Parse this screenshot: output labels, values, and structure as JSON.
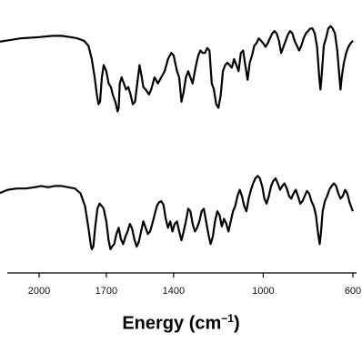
{
  "chart_data": {
    "type": "line",
    "title": "",
    "xlabel_main": "Energy (cm",
    "xlabel_sup": "−1",
    "xlabel_close": ")",
    "x_reversed": true,
    "xlim": [
      2200,
      600
    ],
    "x_ticks": [
      2000,
      1700,
      1400,
      1000,
      600
    ],
    "x_tick_labels": [
      "2000",
      "1700",
      "1400",
      "1000",
      "600"
    ],
    "y_axis_visible": false,
    "grid": false,
    "series": [
      {
        "points": [
          [
            2220,
            0.78
          ],
          [
            2150,
            0.8
          ],
          [
            2080,
            0.82
          ],
          [
            2000,
            0.83
          ],
          [
            1940,
            0.84
          ],
          [
            1900,
            0.84
          ],
          [
            1860,
            0.83
          ],
          [
            1830,
            0.82
          ],
          [
            1800,
            0.8
          ],
          [
            1780,
            0.76
          ],
          [
            1765,
            0.65
          ],
          [
            1752,
            0.5
          ],
          [
            1742,
            0.35
          ],
          [
            1735,
            0.28
          ],
          [
            1728,
            0.3
          ],
          [
            1720,
            0.5
          ],
          [
            1712,
            0.6
          ],
          [
            1700,
            0.55
          ],
          [
            1690,
            0.45
          ],
          [
            1680,
            0.42
          ],
          [
            1670,
            0.35
          ],
          [
            1660,
            0.3
          ],
          [
            1650,
            0.22
          ],
          [
            1645,
            0.25
          ],
          [
            1640,
            0.45
          ],
          [
            1632,
            0.5
          ],
          [
            1622,
            0.45
          ],
          [
            1612,
            0.4
          ],
          [
            1602,
            0.42
          ],
          [
            1592,
            0.36
          ],
          [
            1582,
            0.28
          ],
          [
            1572,
            0.3
          ],
          [
            1562,
            0.45
          ],
          [
            1552,
            0.6
          ],
          [
            1542,
            0.5
          ],
          [
            1535,
            0.42
          ],
          [
            1525,
            0.4
          ],
          [
            1510,
            0.36
          ],
          [
            1500,
            0.4
          ],
          [
            1485,
            0.5
          ],
          [
            1470,
            0.45
          ],
          [
            1455,
            0.5
          ],
          [
            1440,
            0.55
          ],
          [
            1425,
            0.65
          ],
          [
            1410,
            0.7
          ],
          [
            1400,
            0.68
          ],
          [
            1385,
            0.55
          ],
          [
            1375,
            0.5
          ],
          [
            1365,
            0.3
          ],
          [
            1355,
            0.38
          ],
          [
            1345,
            0.5
          ],
          [
            1335,
            0.55
          ],
          [
            1325,
            0.5
          ],
          [
            1315,
            0.45
          ],
          [
            1300,
            0.6
          ],
          [
            1290,
            0.68
          ],
          [
            1280,
            0.72
          ],
          [
            1270,
            0.7
          ],
          [
            1260,
            0.7
          ],
          [
            1250,
            0.74
          ],
          [
            1240,
            0.72
          ],
          [
            1230,
            0.45
          ],
          [
            1220,
            0.4
          ],
          [
            1210,
            0.28
          ],
          [
            1200,
            0.25
          ],
          [
            1190,
            0.35
          ],
          [
            1180,
            0.55
          ],
          [
            1170,
            0.6
          ],
          [
            1160,
            0.62
          ],
          [
            1150,
            0.6
          ],
          [
            1140,
            0.58
          ],
          [
            1130,
            0.65
          ],
          [
            1120,
            0.6
          ],
          [
            1110,
            0.55
          ],
          [
            1100,
            0.7
          ],
          [
            1090,
            0.72
          ],
          [
            1080,
            0.6
          ],
          [
            1070,
            0.48
          ],
          [
            1060,
            0.62
          ],
          [
            1050,
            0.68
          ],
          [
            1040,
            0.76
          ],
          [
            1030,
            0.78
          ],
          [
            1020,
            0.82
          ],
          [
            1010,
            0.8
          ],
          [
            1000,
            0.78
          ],
          [
            990,
            0.75
          ],
          [
            980,
            0.78
          ],
          [
            970,
            0.82
          ],
          [
            960,
            0.86
          ],
          [
            950,
            0.88
          ],
          [
            940,
            0.86
          ],
          [
            930,
            0.8
          ],
          [
            920,
            0.7
          ],
          [
            910,
            0.75
          ],
          [
            900,
            0.8
          ],
          [
            890,
            0.85
          ],
          [
            880,
            0.88
          ],
          [
            870,
            0.86
          ],
          [
            860,
            0.8
          ],
          [
            850,
            0.76
          ],
          [
            840,
            0.72
          ],
          [
            830,
            0.76
          ],
          [
            820,
            0.82
          ],
          [
            810,
            0.86
          ],
          [
            800,
            0.88
          ],
          [
            790,
            0.9
          ],
          [
            780,
            0.9
          ],
          [
            770,
            0.86
          ],
          [
            760,
            0.75
          ],
          [
            750,
            0.5
          ],
          [
            745,
            0.4
          ],
          [
            740,
            0.5
          ],
          [
            730,
            0.76
          ],
          [
            720,
            0.82
          ],
          [
            710,
            0.9
          ],
          [
            700,
            0.92
          ],
          [
            690,
            0.9
          ],
          [
            680,
            0.86
          ],
          [
            670,
            0.72
          ],
          [
            660,
            0.5
          ],
          [
            655,
            0.4
          ],
          [
            650,
            0.5
          ],
          [
            640,
            0.62
          ],
          [
            630,
            0.7
          ],
          [
            620,
            0.75
          ],
          [
            610,
            0.78
          ],
          [
            600,
            0.8
          ]
        ]
      },
      {
        "points": [
          [
            2220,
            0.5
          ],
          [
            2180,
            0.52
          ],
          [
            2140,
            0.55
          ],
          [
            2100,
            0.56
          ],
          [
            2060,
            0.56
          ],
          [
            2020,
            0.57
          ],
          [
            1990,
            0.58
          ],
          [
            1960,
            0.57
          ],
          [
            1930,
            0.58
          ],
          [
            1900,
            0.58
          ],
          [
            1870,
            0.57
          ],
          [
            1840,
            0.56
          ],
          [
            1815,
            0.52
          ],
          [
            1795,
            0.42
          ],
          [
            1780,
            0.25
          ],
          [
            1770,
            0.12
          ],
          [
            1765,
            0.08
          ],
          [
            1758,
            0.1
          ],
          [
            1750,
            0.25
          ],
          [
            1740,
            0.4
          ],
          [
            1730,
            0.44
          ],
          [
            1720,
            0.42
          ],
          [
            1712,
            0.4
          ],
          [
            1700,
            0.3
          ],
          [
            1690,
            0.15
          ],
          [
            1682,
            0.08
          ],
          [
            1675,
            0.1
          ],
          [
            1665,
            0.12
          ],
          [
            1655,
            0.2
          ],
          [
            1645,
            0.25
          ],
          [
            1635,
            0.16
          ],
          [
            1625,
            0.12
          ],
          [
            1615,
            0.18
          ],
          [
            1605,
            0.22
          ],
          [
            1595,
            0.28
          ],
          [
            1585,
            0.24
          ],
          [
            1575,
            0.16
          ],
          [
            1565,
            0.1
          ],
          [
            1555,
            0.14
          ],
          [
            1545,
            0.22
          ],
          [
            1535,
            0.3
          ],
          [
            1525,
            0.25
          ],
          [
            1515,
            0.2
          ],
          [
            1505,
            0.22
          ],
          [
            1495,
            0.28
          ],
          [
            1485,
            0.35
          ],
          [
            1475,
            0.42
          ],
          [
            1465,
            0.45
          ],
          [
            1455,
            0.46
          ],
          [
            1445,
            0.43
          ],
          [
            1435,
            0.32
          ],
          [
            1425,
            0.25
          ],
          [
            1415,
            0.3
          ],
          [
            1405,
            0.22
          ],
          [
            1395,
            0.28
          ],
          [
            1385,
            0.3
          ],
          [
            1375,
            0.22
          ],
          [
            1365,
            0.15
          ],
          [
            1355,
            0.22
          ],
          [
            1345,
            0.3
          ],
          [
            1335,
            0.4
          ],
          [
            1325,
            0.38
          ],
          [
            1315,
            0.28
          ],
          [
            1305,
            0.22
          ],
          [
            1295,
            0.25
          ],
          [
            1285,
            0.3
          ],
          [
            1275,
            0.38
          ],
          [
            1265,
            0.4
          ],
          [
            1255,
            0.3
          ],
          [
            1245,
            0.2
          ],
          [
            1235,
            0.12
          ],
          [
            1225,
            0.18
          ],
          [
            1215,
            0.3
          ],
          [
            1205,
            0.38
          ],
          [
            1195,
            0.35
          ],
          [
            1185,
            0.26
          ],
          [
            1175,
            0.32
          ],
          [
            1165,
            0.28
          ],
          [
            1155,
            0.22
          ],
          [
            1145,
            0.3
          ],
          [
            1135,
            0.38
          ],
          [
            1125,
            0.42
          ],
          [
            1115,
            0.5
          ],
          [
            1105,
            0.55
          ],
          [
            1095,
            0.5
          ],
          [
            1085,
            0.42
          ],
          [
            1075,
            0.38
          ],
          [
            1065,
            0.48
          ],
          [
            1055,
            0.55
          ],
          [
            1045,
            0.6
          ],
          [
            1035,
            0.64
          ],
          [
            1025,
            0.66
          ],
          [
            1015,
            0.64
          ],
          [
            1005,
            0.58
          ],
          [
            995,
            0.48
          ],
          [
            985,
            0.44
          ],
          [
            975,
            0.5
          ],
          [
            965,
            0.58
          ],
          [
            955,
            0.62
          ],
          [
            945,
            0.64
          ],
          [
            935,
            0.6
          ],
          [
            925,
            0.55
          ],
          [
            915,
            0.58
          ],
          [
            905,
            0.6
          ],
          [
            895,
            0.56
          ],
          [
            885,
            0.5
          ],
          [
            875,
            0.48
          ],
          [
            865,
            0.52
          ],
          [
            855,
            0.55
          ],
          [
            845,
            0.5
          ],
          [
            835,
            0.44
          ],
          [
            825,
            0.46
          ],
          [
            815,
            0.5
          ],
          [
            805,
            0.54
          ],
          [
            795,
            0.52
          ],
          [
            785,
            0.46
          ],
          [
            775,
            0.42
          ],
          [
            765,
            0.35
          ],
          [
            755,
            0.2
          ],
          [
            748,
            0.12
          ],
          [
            742,
            0.22
          ],
          [
            735,
            0.38
          ],
          [
            725,
            0.46
          ],
          [
            715,
            0.5
          ],
          [
            705,
            0.55
          ],
          [
            695,
            0.58
          ],
          [
            685,
            0.6
          ],
          [
            675,
            0.58
          ],
          [
            665,
            0.52
          ],
          [
            655,
            0.48
          ],
          [
            645,
            0.5
          ],
          [
            635,
            0.55
          ],
          [
            625,
            0.52
          ],
          [
            615,
            0.45
          ],
          [
            605,
            0.4
          ],
          [
            600,
            0.38
          ]
        ]
      }
    ]
  }
}
